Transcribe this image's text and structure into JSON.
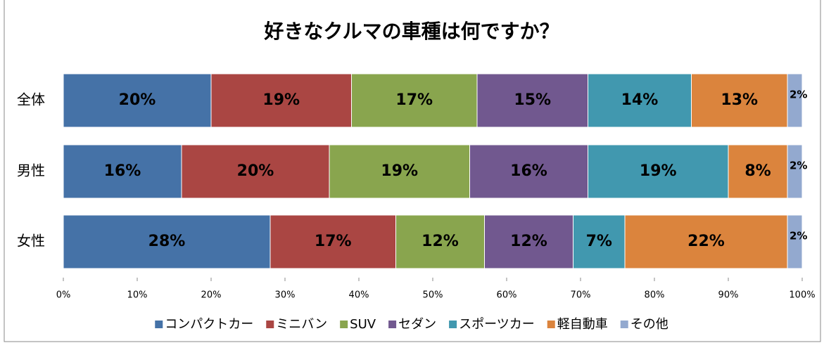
{
  "chart_data": {
    "type": "stacked-bar-horizontal",
    "title": "好きなクルマの車種は何ですか？",
    "categories": [
      "全体",
      "男性",
      "女性"
    ],
    "series": [
      {
        "name": "コンパクトカー",
        "color": "#4572a7",
        "values": [
          20,
          16,
          28
        ],
        "value_labels": [
          "20%",
          "16%",
          "28%"
        ]
      },
      {
        "name": "ミニバン",
        "color": "#aa4643",
        "values": [
          19,
          20,
          17
        ],
        "value_labels": [
          "19%",
          "20%",
          "17%"
        ]
      },
      {
        "name": "SUV",
        "color": "#89a54e",
        "values": [
          17,
          19,
          12
        ],
        "value_labels": [
          "17%",
          "19%",
          "12%"
        ]
      },
      {
        "name": "セダン",
        "color": "#71588f",
        "values": [
          15,
          16,
          12
        ],
        "value_labels": [
          "15%",
          "16%",
          "12%"
        ]
      },
      {
        "name": "スポーツカー",
        "color": "#4198af",
        "values": [
          14,
          19,
          7
        ],
        "value_labels": [
          "14%",
          "19%",
          "7%"
        ]
      },
      {
        "name": "軽自動車",
        "color": "#db843d",
        "values": [
          13,
          8,
          22
        ],
        "value_labels": [
          "13%",
          "8%",
          "22%"
        ]
      },
      {
        "name": "その他",
        "color": "#93a9cf",
        "values": [
          2,
          2,
          2
        ],
        "value_labels": [
          "2%",
          "2%",
          "2%"
        ]
      }
    ],
    "xlim": [
      0,
      100
    ],
    "xticks": [
      {
        "value": 0,
        "label": "0%"
      },
      {
        "value": 10,
        "label": "10%"
      },
      {
        "value": 20,
        "label": "20%"
      },
      {
        "value": 30,
        "label": "30%"
      },
      {
        "value": 40,
        "label": "40%"
      },
      {
        "value": 50,
        "label": "50%"
      },
      {
        "value": 60,
        "label": "60%"
      },
      {
        "value": 70,
        "label": "70%"
      },
      {
        "value": 80,
        "label": "80%"
      },
      {
        "value": 90,
        "label": "90%"
      },
      {
        "value": 100,
        "label": "100%"
      }
    ],
    "legend": "bottom"
  }
}
